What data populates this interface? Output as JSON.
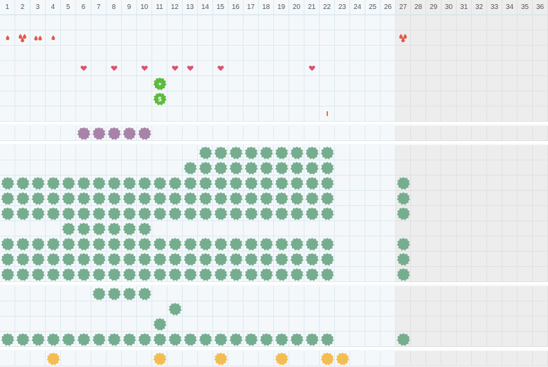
{
  "grid": {
    "columns": [
      "1",
      "2",
      "3",
      "4",
      "5",
      "6",
      "7",
      "8",
      "9",
      "10",
      "11",
      "12",
      "13",
      "14",
      "15",
      "16",
      "17",
      "18",
      "19",
      "20",
      "21",
      "22",
      "23",
      "24",
      "25",
      "26",
      "27",
      "28",
      "29",
      "30",
      "31",
      "32",
      "33",
      "34",
      "35",
      "36"
    ],
    "shaded_from_column": 27
  },
  "colors": {
    "grid_line": "#dce9ef",
    "cell_bg": "#f4f8fb",
    "shaded_bg": "#ededed",
    "green_tile": "#76ad8f",
    "purple_tile": "#a882a8",
    "yellow_tile": "#f2bd52",
    "badge_green": "#5dba3d",
    "heart": "#d9536f",
    "drop": "#e05a4a",
    "tick": "#e8734a"
  },
  "icons": {
    "heart": "heart-icon",
    "drop": "drop-icon",
    "tile": "tile-icon",
    "badge_plus": "plus-badge-icon",
    "badge_dollar": "dollar-badge-icon"
  },
  "markers": {
    "drops": [
      {
        "col": 1,
        "row": 2,
        "count": 1
      },
      {
        "col": 2,
        "row": 2,
        "count": 3
      },
      {
        "col": 3,
        "row": 2,
        "count": 2
      },
      {
        "col": 4,
        "row": 2,
        "count": 1
      },
      {
        "col": 27,
        "row": 2,
        "count": 3
      }
    ],
    "hearts": [
      {
        "col": 6,
        "row": 4
      },
      {
        "col": 8,
        "row": 4
      },
      {
        "col": 10,
        "row": 4
      },
      {
        "col": 12,
        "row": 4
      },
      {
        "col": 13,
        "row": 4
      },
      {
        "col": 15,
        "row": 4
      },
      {
        "col": 21,
        "row": 4
      }
    ],
    "badges": [
      {
        "col": 11,
        "row": 5,
        "symbol": "+"
      },
      {
        "col": 11,
        "row": 6,
        "symbol": "$"
      }
    ],
    "ticks": [
      {
        "col": 22,
        "row": 7
      }
    ]
  },
  "tiles": {
    "purple": [
      {
        "row": 8,
        "cols": [
          6,
          7,
          8,
          9,
          10
        ]
      }
    ],
    "green": [
      {
        "row": 9,
        "cols": [
          14,
          15,
          16,
          17,
          18,
          19,
          20,
          21,
          22
        ]
      },
      {
        "row": 10,
        "cols": [
          13,
          14,
          15,
          16,
          17,
          18,
          19,
          20,
          21,
          22
        ]
      },
      {
        "row": 11,
        "cols": [
          1,
          2,
          3,
          4,
          5,
          6,
          7,
          8,
          9,
          10,
          11,
          12,
          13,
          14,
          15,
          16,
          17,
          18,
          19,
          20,
          21,
          22,
          27
        ]
      },
      {
        "row": 12,
        "cols": [
          1,
          2,
          3,
          4,
          5,
          6,
          7,
          8,
          9,
          10,
          11,
          12,
          13,
          14,
          15,
          16,
          17,
          18,
          19,
          20,
          21,
          22,
          27
        ]
      },
      {
        "row": 13,
        "cols": [
          1,
          2,
          3,
          4,
          5,
          6,
          7,
          8,
          9,
          10,
          11,
          12,
          13,
          14,
          15,
          16,
          17,
          18,
          19,
          20,
          21,
          22,
          27
        ]
      },
      {
        "row": 14,
        "cols": [
          5,
          6,
          7,
          8,
          9,
          10
        ]
      },
      {
        "row": 15,
        "cols": [
          1,
          2,
          3,
          4,
          5,
          6,
          7,
          8,
          9,
          10,
          11,
          12,
          13,
          14,
          15,
          16,
          17,
          18,
          19,
          20,
          21,
          22,
          27
        ]
      },
      {
        "row": 16,
        "cols": [
          1,
          2,
          3,
          4,
          5,
          6,
          7,
          8,
          9,
          10,
          11,
          12,
          13,
          14,
          15,
          16,
          17,
          18,
          19,
          20,
          21,
          22,
          27
        ]
      },
      {
        "row": 17,
        "cols": [
          1,
          2,
          3,
          4,
          5,
          6,
          7,
          8,
          9,
          10,
          11,
          12,
          13,
          14,
          15,
          16,
          17,
          18,
          19,
          20,
          21,
          22,
          27
        ]
      },
      {
        "row": 18,
        "cols": [
          7,
          8,
          9,
          10
        ]
      },
      {
        "row": 19,
        "cols": [
          12
        ]
      },
      {
        "row": 20,
        "cols": [
          11
        ]
      },
      {
        "row": 21,
        "cols": [
          1,
          2,
          3,
          4,
          5,
          6,
          7,
          8,
          9,
          10,
          11,
          12,
          13,
          14,
          15,
          16,
          17,
          18,
          19,
          20,
          21,
          22,
          27
        ]
      }
    ],
    "yellow": [
      {
        "row": 22,
        "cols": [
          4,
          11,
          15,
          19,
          22,
          23
        ]
      }
    ]
  }
}
